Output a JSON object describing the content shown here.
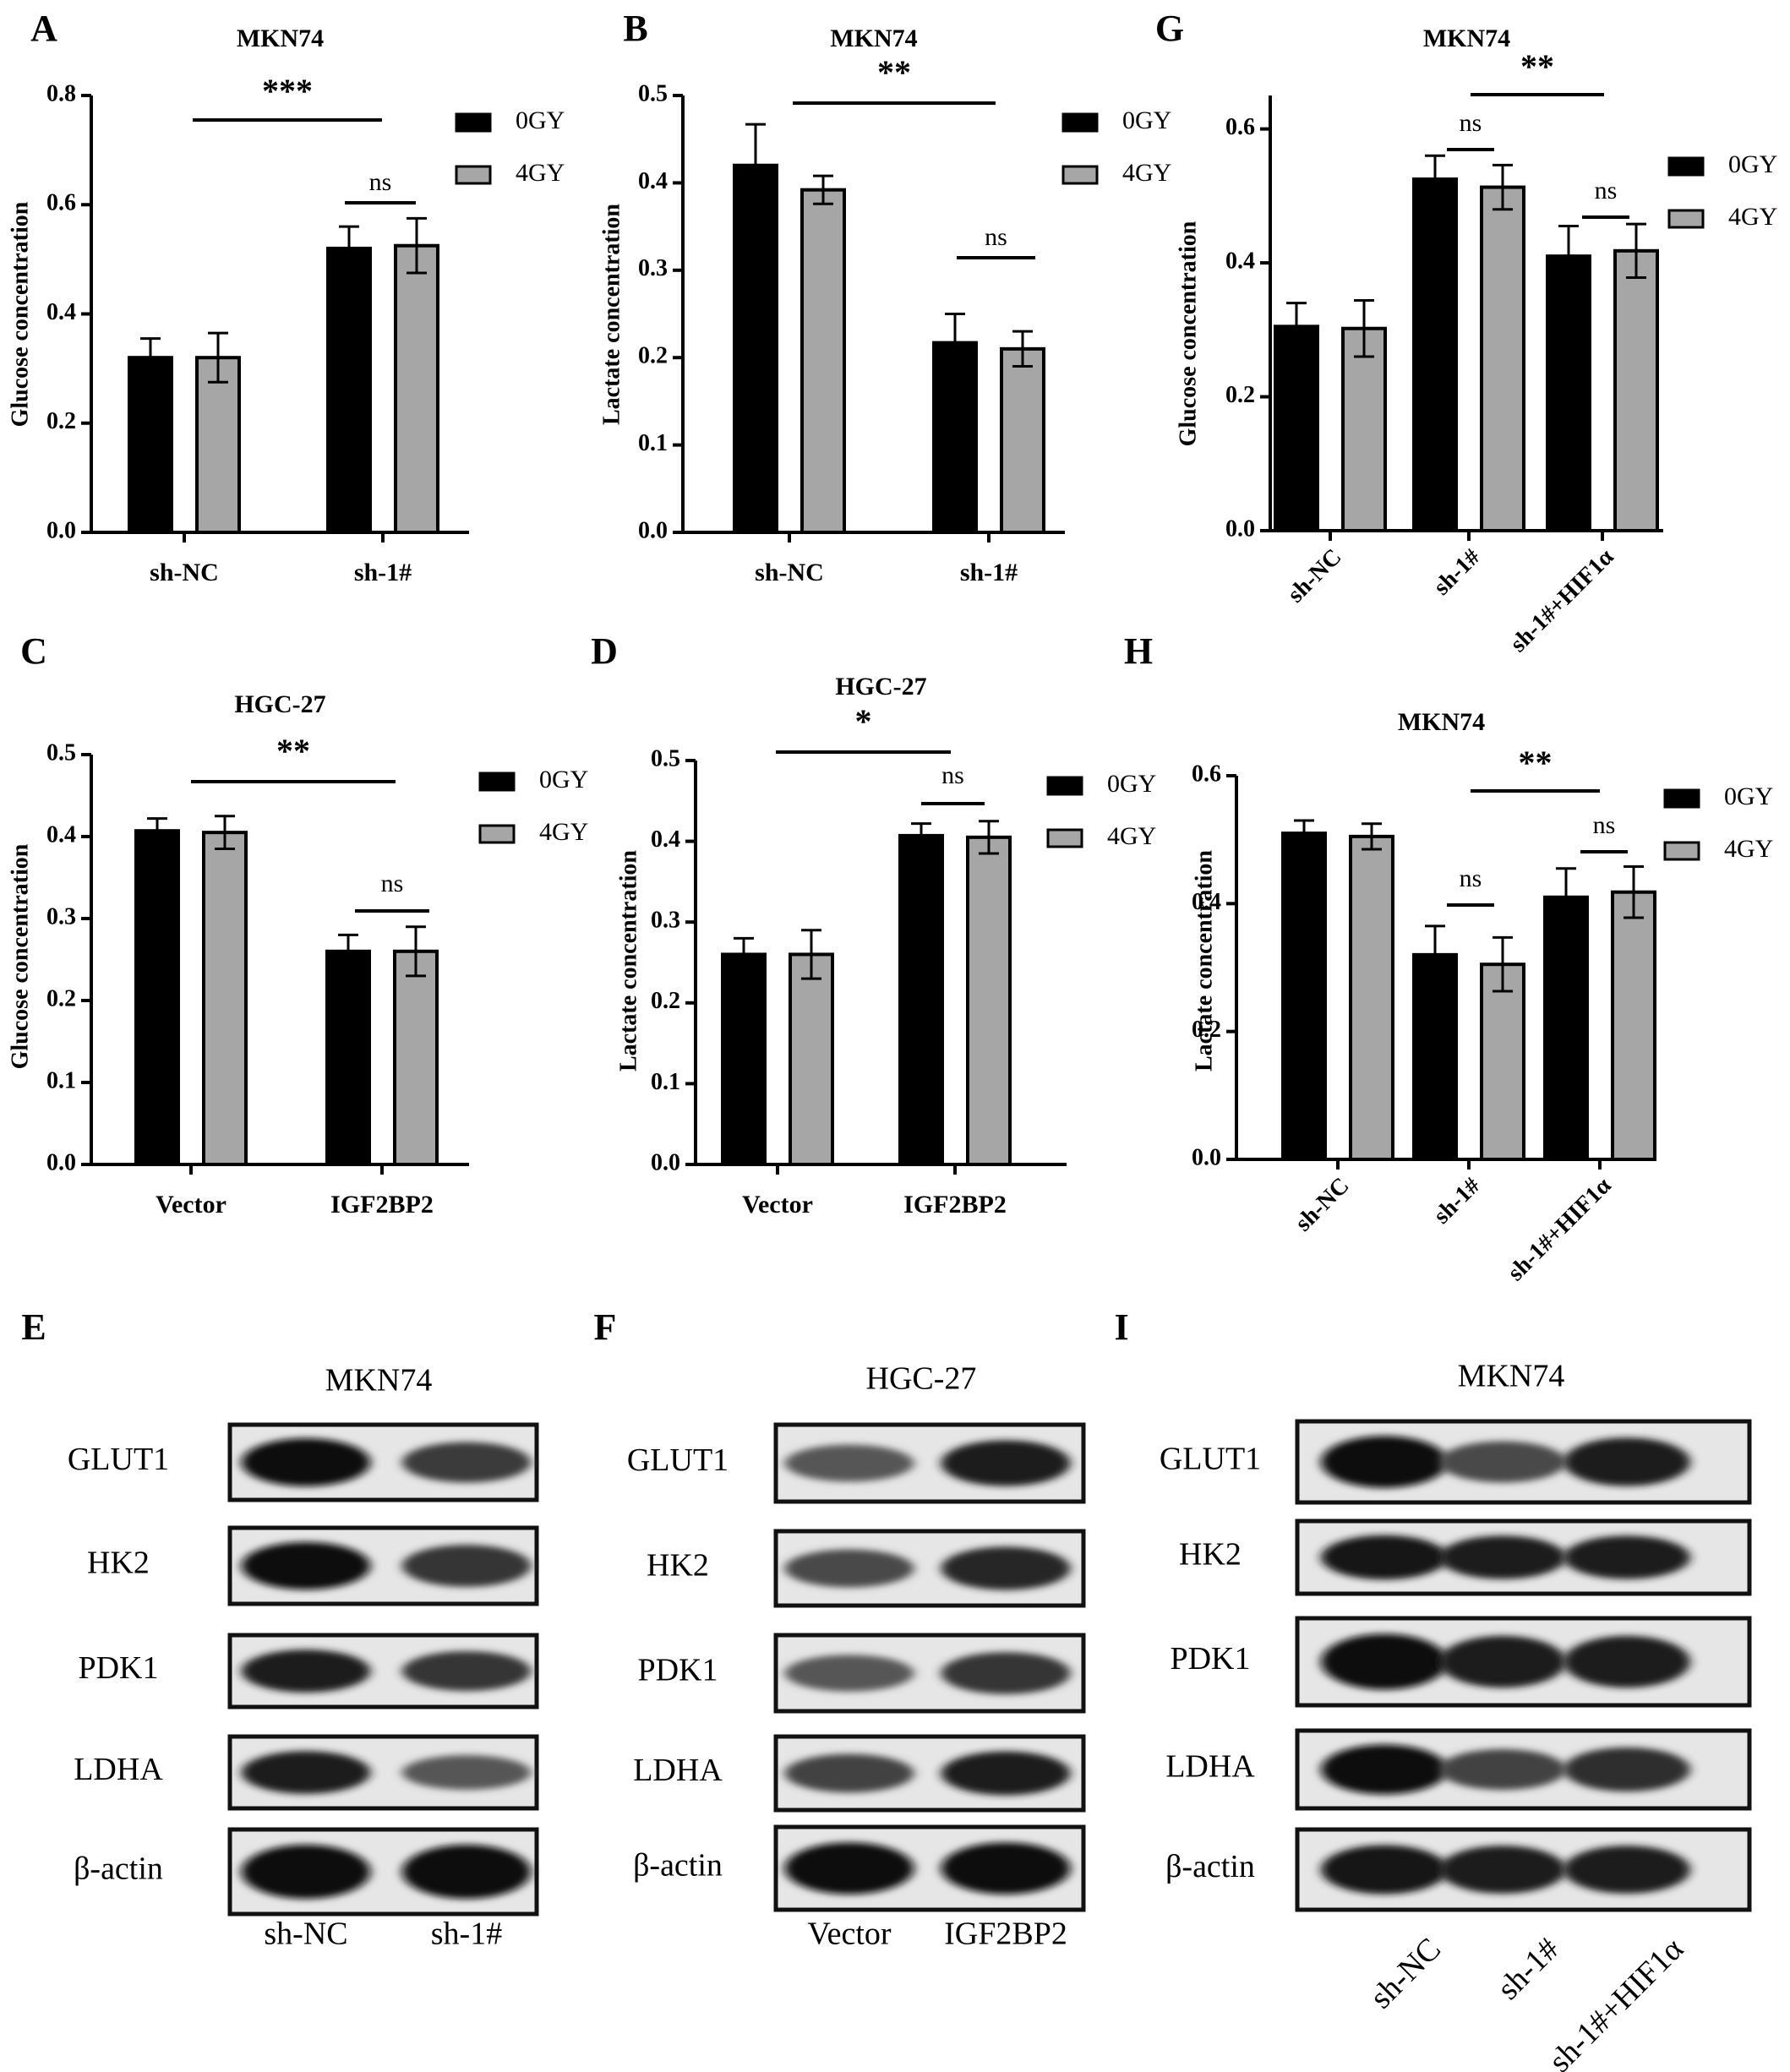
{
  "legend": {
    "series": [
      "0GY",
      "4GY"
    ]
  },
  "colors": {
    "series_0GY": "#000000",
    "series_4GY": "#a6a6a6",
    "axis": "#000000"
  },
  "chart_data": [
    {
      "panel": "A",
      "type": "bar",
      "title": "MKN74",
      "ylabel": "Glucose concentration",
      "xlabel": "",
      "categories": [
        "sh-NC",
        "sh-1#"
      ],
      "yticks": [
        "0.0",
        "0.2",
        "0.4",
        "0.6",
        "0.8"
      ],
      "ylim": [
        0,
        0.8
      ],
      "series": [
        {
          "name": "0GY",
          "values": [
            0.32,
            0.52
          ],
          "errors": [
            0.035,
            0.04
          ]
        },
        {
          "name": "4GY",
          "values": [
            0.32,
            0.525
          ],
          "errors": [
            0.045,
            0.05
          ]
        }
      ],
      "significance": [
        {
          "label": "***",
          "kind": "between"
        },
        {
          "label": "ns",
          "kind": "within",
          "category": 1
        }
      ]
    },
    {
      "panel": "B",
      "type": "bar",
      "title": "MKN74",
      "ylabel": "Lactate concentration",
      "xlabel": "",
      "categories": [
        "sh-NC",
        "sh-1#"
      ],
      "yticks": [
        "0.0",
        "0.1",
        "0.2",
        "0.3",
        "0.4",
        "0.5"
      ],
      "ylim": [
        0,
        0.5
      ],
      "series": [
        {
          "name": "0GY",
          "values": [
            0.42,
            0.217
          ],
          "errors": [
            0.047,
            0.033
          ]
        },
        {
          "name": "4GY",
          "values": [
            0.392,
            0.21
          ],
          "errors": [
            0.016,
            0.02
          ]
        }
      ],
      "significance": [
        {
          "label": "**",
          "kind": "between"
        },
        {
          "label": "ns",
          "kind": "within",
          "category": 1
        }
      ]
    },
    {
      "panel": "G",
      "type": "bar",
      "title": "MKN74",
      "ylabel": "Glucose concentration",
      "xlabel": "",
      "categories": [
        "sh-NC",
        "sh-1#",
        "sh-1#+HIF1α"
      ],
      "yticks": [
        "0.0",
        "0.2",
        "0.4",
        "0.6"
      ],
      "ylim": [
        0,
        0.65
      ],
      "series": [
        {
          "name": "0GY",
          "values": [
            0.305,
            0.525,
            0.41
          ],
          "errors": [
            0.035,
            0.035,
            0.045
          ]
        },
        {
          "name": "4GY",
          "values": [
            0.302,
            0.513,
            0.418
          ],
          "errors": [
            0.042,
            0.033,
            0.04
          ]
        }
      ],
      "significance": [
        {
          "label": "**",
          "kind": "between"
        },
        {
          "label": "ns",
          "kind": "within",
          "category": 1
        },
        {
          "label": "ns",
          "kind": "within",
          "category": 2
        }
      ]
    },
    {
      "panel": "C",
      "type": "bar",
      "title": "HGC-27",
      "ylabel": "Glucose concentration",
      "xlabel": "",
      "categories": [
        "Vector",
        "IGF2BP2"
      ],
      "yticks": [
        "0.0",
        "0.1",
        "0.2",
        "0.3",
        "0.4",
        "0.5"
      ],
      "ylim": [
        0,
        0.5
      ],
      "series": [
        {
          "name": "0GY",
          "values": [
            0.407,
            0.26
          ],
          "errors": [
            0.015,
            0.02
          ]
        },
        {
          "name": "4GY",
          "values": [
            0.405,
            0.26
          ],
          "errors": [
            0.02,
            0.03
          ]
        }
      ],
      "significance": [
        {
          "label": "**",
          "kind": "between"
        },
        {
          "label": "ns",
          "kind": "within",
          "category": 1
        }
      ]
    },
    {
      "panel": "D",
      "type": "bar",
      "title": "HGC-27",
      "ylabel": "Lactate concentration",
      "xlabel": "",
      "categories": [
        "Vector",
        "IGF2BP2"
      ],
      "yticks": [
        "0.0",
        "0.1",
        "0.2",
        "0.3",
        "0.4",
        "0.5"
      ],
      "ylim": [
        0,
        0.5
      ],
      "series": [
        {
          "name": "0GY",
          "values": [
            0.26,
            0.407
          ],
          "errors": [
            0.02,
            0.015
          ]
        },
        {
          "name": "4GY",
          "values": [
            0.26,
            0.405
          ],
          "errors": [
            0.03,
            0.02
          ]
        }
      ],
      "significance": [
        {
          "label": "*",
          "kind": "between"
        },
        {
          "label": "ns",
          "kind": "within",
          "category": 1
        }
      ]
    },
    {
      "panel": "H",
      "type": "bar",
      "title": "MKN74",
      "ylabel": "Lactate concentration",
      "xlabel": "",
      "categories": [
        "sh-NC",
        "sh-1#",
        "sh-1#+HIF1α"
      ],
      "yticks": [
        "0.0",
        "0.2",
        "0.4",
        "0.6"
      ],
      "ylim": [
        0,
        0.6
      ],
      "series": [
        {
          "name": "0GY",
          "values": [
            0.51,
            0.32,
            0.41
          ],
          "errors": [
            0.02,
            0.045,
            0.045
          ]
        },
        {
          "name": "4GY",
          "values": [
            0.505,
            0.305,
            0.418
          ],
          "errors": [
            0.02,
            0.042,
            0.04
          ]
        }
      ],
      "significance": [
        {
          "label": "**",
          "kind": "between"
        },
        {
          "label": "ns",
          "kind": "within",
          "category": 1
        },
        {
          "label": "ns",
          "kind": "within",
          "category": 2
        }
      ]
    }
  ],
  "blots": [
    {
      "panel": "E",
      "title": "MKN74",
      "proteins": [
        "GLUT1",
        "HK2",
        "PDK1",
        "LDHA",
        "β-actin"
      ],
      "lanes": [
        "sh-NC",
        "sh-1#"
      ],
      "band_intensity": [
        [
          1.0,
          0.65
        ],
        [
          0.95,
          0.7
        ],
        [
          0.85,
          0.7
        ],
        [
          0.85,
          0.45
        ],
        [
          1.0,
          1.0
        ]
      ]
    },
    {
      "panel": "F",
      "title": "HGC-27",
      "proteins": [
        "GLUT1",
        "HK2",
        "PDK1",
        "LDHA",
        "β-actin"
      ],
      "lanes": [
        "Vector",
        "IGF2BP2"
      ],
      "band_intensity": [
        [
          0.45,
          0.85
        ],
        [
          0.55,
          0.8
        ],
        [
          0.45,
          0.7
        ],
        [
          0.6,
          0.85
        ],
        [
          0.95,
          0.95
        ]
      ]
    },
    {
      "panel": "I",
      "title": "MKN74",
      "proteins": [
        "GLUT1",
        "HK2",
        "PDK1",
        "LDHA",
        "β-actin"
      ],
      "lanes": [
        "sh-NC",
        "sh-1#",
        "sh-1#+HIF1α"
      ],
      "band_intensity": [
        [
          1.0,
          0.55,
          0.85
        ],
        [
          0.9,
          0.85,
          0.85
        ],
        [
          1.0,
          0.85,
          0.85
        ],
        [
          1.0,
          0.6,
          0.75
        ],
        [
          0.9,
          0.85,
          0.85
        ]
      ]
    }
  ]
}
